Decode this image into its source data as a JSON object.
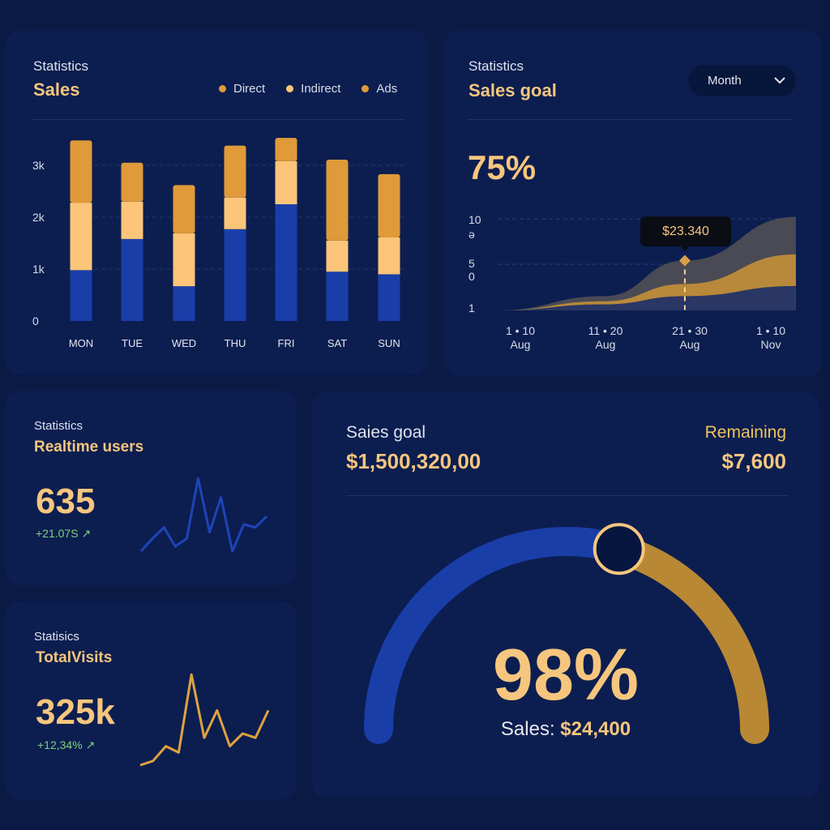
{
  "colors": {
    "background": "#0a1a45",
    "card": "#0c1e50",
    "accent_gold": "#f6c67e",
    "direct": "#e09a3a",
    "indirect": "#fcc57a",
    "ads": "#e09a3a",
    "blue": "#1a3ea8",
    "positive": "#7fd37a"
  },
  "sales_card": {
    "subtitle": "Statistics",
    "title": "Sales",
    "legend": [
      {
        "label": "Direct",
        "color": "#e09a3a"
      },
      {
        "label": "Indirect",
        "color": "#fcc57a"
      },
      {
        "label": "Ads",
        "color": "#e09a3a"
      }
    ]
  },
  "goal_card": {
    "subtitle": "Statistics",
    "title": "Sales goal",
    "dropdown": {
      "selected": "Month",
      "icon": "chevron-down-icon"
    },
    "percent": "75%",
    "tooltip": "$23.340"
  },
  "realtime_card": {
    "subtitle": "Statistics",
    "title": "Realtime users",
    "value": "635",
    "delta": "+21.07S",
    "trend_icon": "trend-up-icon"
  },
  "visits_card": {
    "subtitle": "Statisics",
    "title": "TotalVisits",
    "value": "325k",
    "delta": "+12,34%",
    "trend_icon": "trend-up-icon"
  },
  "gauge_card": {
    "goal_label": "Saies goal",
    "goal_value": "$1,500,320,00",
    "remaining_label": "Remaining",
    "remaining_value": "$7,600",
    "percent": "98%",
    "sales_label": "Sales:",
    "sales_value": "$24,400",
    "knob_progress": 0.59
  },
  "chart_data": [
    {
      "type": "bar",
      "stacked": true,
      "categories": [
        "MON",
        "TUE",
        "WED",
        "THU",
        "FRI",
        "SAT",
        "SUN"
      ],
      "ylim": [
        0,
        3600
      ],
      "yticks": [
        "0",
        "1k",
        "2k",
        "3k"
      ],
      "ytick_values": [
        0,
        1000,
        2000,
        3000
      ],
      "grid": true,
      "legend": "top-right",
      "series": [
        {
          "name": "Direct",
          "color": "#1a3ea8",
          "values": [
            980,
            1580,
            670,
            1770,
            2250,
            950,
            900
          ]
        },
        {
          "name": "Indirect",
          "color": "#fcc57a",
          "values": [
            1300,
            720,
            1020,
            610,
            830,
            600,
            710
          ]
        },
        {
          "name": "Ads",
          "color": "#e09a3a",
          "values": [
            1200,
            750,
            930,
            1000,
            450,
            1560,
            1220
          ]
        }
      ]
    },
    {
      "type": "area",
      "stacked": false,
      "xticks": [
        {
          "top": "1 • 10",
          "bottom": "Aug"
        },
        {
          "top": "11 • 20",
          "bottom": "Aug"
        },
        {
          "top": "21 • 30",
          "bottom": "Aug"
        },
        {
          "top": "1 • 10",
          "bottom": "Nov"
        }
      ],
      "yticks": [
        "10",
        "ə",
        "5",
        "0",
        "1"
      ],
      "grid": true,
      "x": [
        -0.27,
        1,
        1.97,
        3.3
      ],
      "series": [
        {
          "color": "#4a4a55",
          "values": [
            1,
            2.4,
            5.9,
            10.2
          ]
        },
        {
          "color": "#b8893a",
          "values": [
            1,
            1.9,
            3.6,
            6.5
          ]
        },
        {
          "color": "#2a3664",
          "values": [
            1,
            1.6,
            2.4,
            3.4
          ]
        }
      ],
      "marker": {
        "x": 1.97,
        "y": 5.9,
        "label": "$23.340"
      }
    },
    {
      "type": "line",
      "series": [
        {
          "color": "#1e44b8",
          "values": [
            1.0,
            1.8,
            2.5,
            1.3,
            1.8,
            5.6,
            2.2,
            4.4,
            1.0,
            2.7,
            2.5,
            3.2
          ]
        }
      ]
    },
    {
      "type": "line",
      "series": [
        {
          "color": "#e0a23f",
          "values": [
            1.0,
            1.2,
            1.9,
            1.6,
            5.3,
            2.3,
            3.6,
            1.9,
            2.5,
            2.3,
            3.6
          ]
        }
      ]
    }
  ]
}
